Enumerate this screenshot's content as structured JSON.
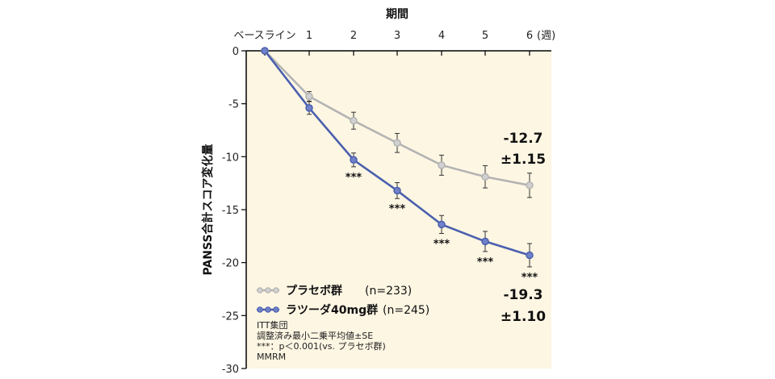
{
  "chart_data": {
    "type": "line",
    "title": "期間",
    "ylabel": "PANSS合計スコア変化量",
    "xlabel": "期間",
    "x": [
      0,
      1,
      2,
      3,
      4,
      5,
      6
    ],
    "x_tick_labels": [
      "ベースライン",
      "1",
      "2",
      "3",
      "4",
      "5",
      "6"
    ],
    "x_unit_label": "(週)",
    "ylim": [
      -30,
      0
    ],
    "y_ticks": [
      0,
      -5,
      -10,
      -15,
      -20,
      -25,
      -30
    ],
    "series": [
      {
        "name": "プラセボ群",
        "n_label": "(n=233)",
        "color": "#b3b3b3",
        "values": [
          0,
          -4.3,
          -6.6,
          -8.7,
          -10.8,
          -11.9,
          -12.7
        ],
        "se": [
          0,
          0.45,
          0.8,
          0.9,
          0.95,
          1.05,
          1.15
        ],
        "end_label": [
          "-12.7",
          "±1.15"
        ]
      },
      {
        "name": "ラツーダ40mg群",
        "n_label": "(n=245)",
        "color": "#4a5fae",
        "values": [
          0,
          -5.4,
          -10.3,
          -13.2,
          -16.4,
          -18.0,
          -19.3
        ],
        "se": [
          0,
          0.6,
          0.65,
          0.75,
          0.85,
          0.95,
          1.1
        ],
        "end_label": [
          "-19.3",
          "±1.10"
        ],
        "significance": [
          "",
          "",
          "***",
          "***",
          "***",
          "***",
          "***"
        ]
      }
    ],
    "notes": [
      "ITT集団",
      "調整済み最小二乗平均値±SE",
      "***：p＜0.001(vs. プラセボ群)",
      "MMRM"
    ],
    "grid": false,
    "legend_position": "bottom-left"
  }
}
